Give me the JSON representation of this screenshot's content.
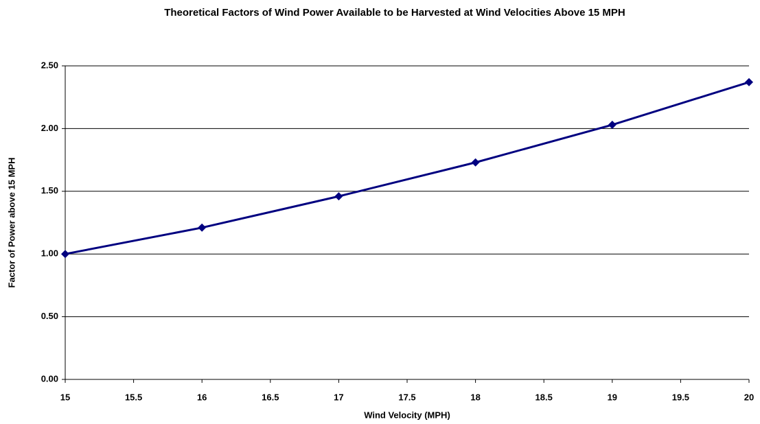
{
  "chart_data": {
    "type": "line",
    "title": "Theoretical Factors of Wind Power Available to be Harvested at Wind Velocities Above 15 MPH",
    "x_label": "Wind Velocity (MPH)",
    "y_label": "Factor of Power above 15 MPH",
    "x": [
      15,
      16,
      17,
      18,
      19,
      20
    ],
    "series": [
      {
        "color": "#000080",
        "values": [
          1.0,
          1.21,
          1.46,
          1.73,
          2.03,
          2.37
        ]
      }
    ],
    "xlim": [
      15,
      20
    ],
    "xticks": [
      15,
      15.5,
      16,
      16.5,
      17,
      17.5,
      18,
      18.5,
      19,
      19.5,
      20
    ],
    "ylim": [
      0,
      2.5
    ],
    "yticks": [
      {
        "value": 0,
        "label": "0.00"
      },
      {
        "value": 0.5,
        "label": "0.50"
      },
      {
        "value": 1,
        "label": "1.00"
      },
      {
        "value": 1.5,
        "label": "1.50"
      },
      {
        "value": 2,
        "label": "2.00"
      },
      {
        "value": 2.5,
        "label": "2.50"
      }
    ],
    "grid": true
  }
}
